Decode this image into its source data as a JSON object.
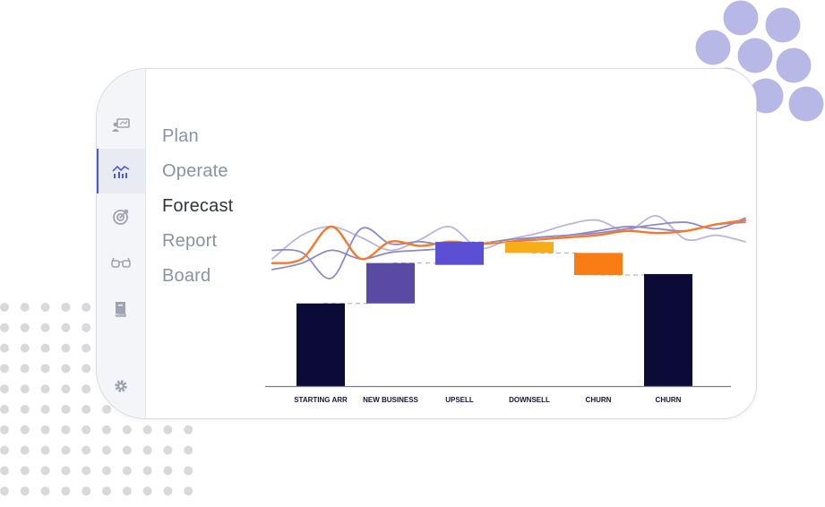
{
  "nav": {
    "items": [
      {
        "label": "Plan",
        "active": false
      },
      {
        "label": "Operate",
        "active": false
      },
      {
        "label": "Forecast",
        "active": true
      },
      {
        "label": "Report",
        "active": false
      },
      {
        "label": "Board",
        "active": false
      }
    ]
  },
  "sidebar": {
    "items": [
      {
        "icon": "presentation-icon",
        "active": false
      },
      {
        "icon": "trend-chart-icon",
        "active": true
      },
      {
        "icon": "target-icon",
        "active": false
      },
      {
        "icon": "glasses-icon",
        "active": false
      },
      {
        "icon": "book-icon",
        "active": false
      }
    ],
    "footer_icon": "gear-icon"
  },
  "colors": {
    "accent": "#4a5bd9",
    "dark_bar": "#0c0a36",
    "new_business": "#5a4aa3",
    "upsell": "#5b4fd4",
    "downsell": "#f7ad19",
    "churn": "#f97c14",
    "line_light": "#b8b6da",
    "line_mid": "#8f8ac6",
    "line_orange": "#f37a2a",
    "bubble": "#b7b8e6",
    "dot": "#d9d9dc"
  },
  "chart_data": {
    "type": "bar",
    "subtype": "waterfall",
    "categories": [
      "STARTING ARR",
      "NEW BUSINESS",
      "UPSELL",
      "DOWNSELL",
      "CHURN",
      "CHURN"
    ],
    "bars": [
      {
        "category": "STARTING ARR",
        "start": 0,
        "end": 90,
        "kind": "total"
      },
      {
        "category": "NEW BUSINESS",
        "start": 90,
        "end": 134,
        "kind": "increase"
      },
      {
        "category": "UPSELL",
        "start": 132,
        "end": 157,
        "kind": "increase"
      },
      {
        "category": "DOWNSELL",
        "start": 157,
        "end": 145,
        "kind": "decrease"
      },
      {
        "category": "CHURN",
        "start": 145,
        "end": 121,
        "kind": "decrease"
      },
      {
        "category": "CHURN",
        "start": 0,
        "end": 122,
        "kind": "total"
      }
    ],
    "ylim": [
      0,
      160
    ],
    "grid": false,
    "trend_lines": [
      {
        "color_key": "line_light",
        "x": [
          0,
          1,
          2,
          3,
          4,
          5,
          6,
          7,
          8,
          9,
          10,
          11,
          12,
          13,
          14,
          15,
          16
        ],
        "y": [
          40,
          62,
          70,
          60,
          48,
          58,
          70,
          50,
          58,
          64,
          72,
          76,
          66,
          80,
          58,
          62,
          56
        ]
      },
      {
        "color_key": "line_mid",
        "x": [
          0,
          1,
          2,
          3,
          4,
          5,
          6,
          7,
          8,
          9,
          10,
          11,
          12,
          13,
          14,
          15,
          16
        ],
        "y": [
          48,
          46,
          22,
          68,
          54,
          56,
          52,
          54,
          58,
          60,
          62,
          64,
          68,
          72,
          74,
          68,
          78
        ]
      },
      {
        "color_key": "line_mid",
        "x": [
          0,
          1,
          2,
          3,
          4,
          5,
          6,
          7,
          8,
          9,
          10,
          11,
          12,
          13,
          14,
          15,
          16
        ],
        "y": [
          30,
          36,
          48,
          40,
          46,
          48,
          50,
          54,
          56,
          60,
          62,
          66,
          70,
          68,
          66,
          72,
          74
        ]
      },
      {
        "color_key": "line_orange",
        "x": [
          0,
          1,
          2,
          3,
          4,
          5,
          6,
          7,
          8,
          9,
          10,
          11,
          12,
          13,
          14,
          15,
          16
        ],
        "y": [
          36,
          40,
          70,
          40,
          56,
          52,
          56,
          54,
          56,
          58,
          60,
          62,
          66,
          64,
          66,
          72,
          76
        ]
      }
    ]
  }
}
